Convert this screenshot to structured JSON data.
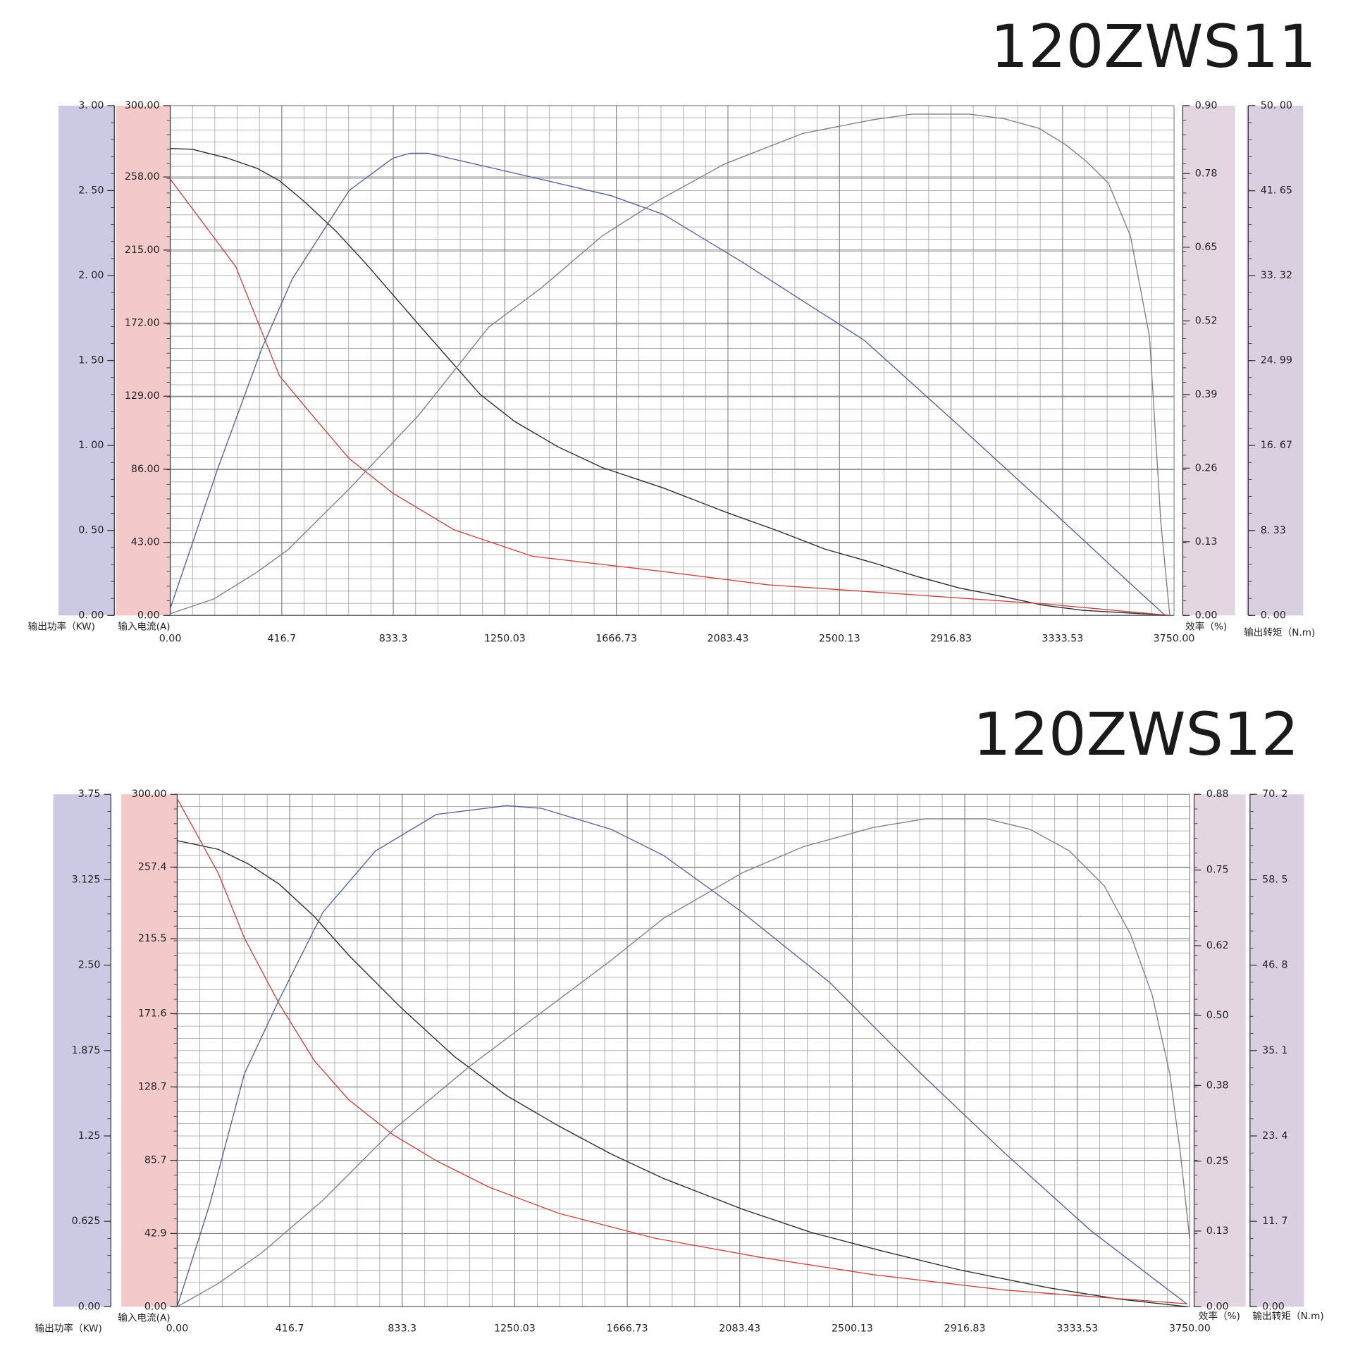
{
  "chart_data": [
    {
      "type": "line",
      "title": "120ZWS11",
      "grid": true,
      "xlim": [
        0,
        3750
      ],
      "xticks": [
        {
          "value": 0,
          "label": "0.00"
        },
        416.7,
        833.3,
        1250.03,
        1666.73,
        2083.43,
        2500.13,
        2916.83,
        3333.53,
        {
          "value": 3750,
          "label": "3750.00"
        }
      ],
      "ylabel": "输出功率（KW)",
      "ylim": [
        0,
        3
      ],
      "yticks": [
        {
          "value": 0,
          "label": "0. 00"
        },
        {
          "value": 0.5,
          "label": "0. 50"
        },
        {
          "value": 1,
          "label": "1. 00"
        },
        {
          "value": 1.5,
          "label": "1. 50"
        },
        {
          "value": 2,
          "label": "2. 00"
        },
        {
          "value": 2.5,
          "label": "2. 50"
        },
        {
          "value": 3,
          "label": "3. 00"
        }
      ],
      "y2label": "输入电流(A)",
      "y2lim": [
        0,
        300
      ],
      "y2ticks": [
        {
          "value": 0,
          "label": "0.00"
        },
        {
          "value": 43,
          "label": "43.00"
        },
        {
          "value": 86,
          "label": "86.00"
        },
        {
          "value": 129,
          "label": "129.00"
        },
        {
          "value": 172,
          "label": "172.00"
        },
        {
          "value": 215,
          "label": "215.00"
        },
        {
          "value": 258,
          "label": "258.00"
        },
        {
          "value": 300,
          "label": "300.00"
        }
      ],
      "y3label": "效率（%)",
      "y3lim": [
        0,
        0.9
      ],
      "y3ticks": [
        {
          "value": 0,
          "label": "0.00"
        },
        0.13,
        0.26,
        0.39,
        0.52,
        0.65,
        0.78,
        {
          "value": 0.9,
          "label": "0.90"
        }
      ],
      "y4label": "输出转矩（N.m)",
      "y4lim": [
        0,
        50
      ],
      "y4ticks": [
        {
          "value": 0,
          "label": "0. 00"
        },
        {
          "value": 8.33,
          "label": "8. 33"
        },
        {
          "value": 16.67,
          "label": "16. 67"
        },
        {
          "value": 24.99,
          "label": "24. 99"
        },
        {
          "value": 33.32,
          "label": "33. 32"
        },
        {
          "value": 41.65,
          "label": "41. 65"
        },
        {
          "value": 50,
          "label": "50. 00"
        }
      ],
      "series": [
        {
          "axis": "y2",
          "color": "#2b2b2b",
          "x": [
            0,
            82,
            212,
            326,
            408,
            505,
            620,
            734,
            929,
            1158,
            1288,
            1451,
            1614,
            1842,
            2071,
            2266,
            2446,
            2625,
            2788,
            2951,
            3114,
            3261,
            3408,
            3734
          ],
          "values": [
            274.8,
            274.3,
            269.2,
            263,
            255.8,
            243,
            226,
            206.5,
            171,
            130,
            114,
            99,
            87,
            75,
            61,
            50,
            39,
            31,
            23,
            16,
            11,
            6,
            3,
            0
          ]
        },
        {
          "axis": "y4",
          "color": "#c8453f",
          "x": [
            0,
            245,
            408,
            538,
            668,
            831,
            1060,
            1353,
            1842,
            2234,
            2625,
            3277,
            3734
          ],
          "values": [
            42.8,
            34.2,
            23.5,
            19.4,
            15.4,
            12.0,
            8.4,
            5.8,
            4.3,
            3.0,
            2.3,
            1.1,
            0
          ]
        },
        {
          "axis": "y",
          "color": "#55619a",
          "x": [
            0,
            179,
            342,
            456,
            668,
            831,
            897,
            962,
            1321,
            1647,
            1842,
            2136,
            2592,
            2951,
            3277,
            3571,
            3717
          ],
          "values": [
            0.04,
            0.87,
            1.57,
            1.98,
            2.5,
            2.69,
            2.72,
            2.72,
            2.59,
            2.47,
            2.36,
            2.08,
            1.62,
            1.11,
            0.64,
            0.21,
            0
          ]
        },
        {
          "axis": "y3",
          "color": "#857a90",
          "x": [
            0,
            163,
            326,
            440,
            668,
            929,
            1190,
            1386,
            1614,
            1810,
            2071,
            2364,
            2625,
            2772,
            2984,
            3114,
            3245,
            3342,
            3424,
            3505,
            3587,
            3658,
            3701,
            3734
          ],
          "values": [
            0.003,
            0.029,
            0.077,
            0.116,
            0.223,
            0.354,
            0.509,
            0.578,
            0.67,
            0.729,
            0.797,
            0.851,
            0.875,
            0.885,
            0.885,
            0.877,
            0.86,
            0.832,
            0.801,
            0.763,
            0.67,
            0.493,
            0.162,
            0
          ]
        }
      ]
    },
    {
      "type": "line",
      "title": "120ZWS12",
      "grid": true,
      "xlim": [
        0,
        3750
      ],
      "xticks": [
        {
          "value": 0,
          "label": "0.00"
        },
        416.7,
        833.3,
        1250.03,
        1666.73,
        2083.43,
        2500.13,
        2916.83,
        3333.53,
        {
          "value": 3750,
          "label": "3750.00"
        }
      ],
      "ylabel": "输出功率（KW)",
      "ylim": [
        0,
        3.75
      ],
      "yticks": [
        {
          "value": 0,
          "label": "0.00"
        },
        0.625,
        1.25,
        1.875,
        {
          "value": 2.5,
          "label": "2.50"
        },
        3.125,
        3.75
      ],
      "y2label": "输入电流(A)",
      "y2lim": [
        0,
        300
      ],
      "y2ticks": [
        {
          "value": 0,
          "label": "0.00"
        },
        42.9,
        85.7,
        128.7,
        171.6,
        215.5,
        257.4,
        {
          "value": 300,
          "label": "300.00"
        }
      ],
      "y3label": "效率（%)",
      "y3lim": [
        0,
        0.88
      ],
      "y3ticks": [
        {
          "value": 0,
          "label": "0.00"
        },
        0.13,
        0.25,
        0.38,
        {
          "value": 0.5,
          "label": "0.50"
        },
        0.62,
        0.75,
        0.88
      ],
      "y4label": "输出转矩（N.m)",
      "y4lim": [
        0,
        70.2
      ],
      "y4ticks": [
        {
          "value": 0,
          "label": "0.00"
        },
        {
          "value": 11.7,
          "label": "11. 7"
        },
        {
          "value": 23.4,
          "label": "23. 4"
        },
        {
          "value": 35.1,
          "label": "35. 1"
        },
        {
          "value": 46.8,
          "label": "46. 8"
        },
        {
          "value": 58.5,
          "label": "58. 5"
        },
        {
          "value": 70.2,
          "label": "70. 2"
        }
      ],
      "series": [
        {
          "axis": "y2",
          "color": "#2b2b2b",
          "x": [
            0,
            152,
            265,
            378,
            508,
            637,
            831,
            1025,
            1219,
            1413,
            1607,
            1801,
            2092,
            2350,
            2609,
            2900,
            3223,
            3482,
            3740
          ],
          "values": [
            272.9,
            267.8,
            259.1,
            247.4,
            228.4,
            205.5,
            174.8,
            146.7,
            123.7,
            105.8,
            89.4,
            75.1,
            57.2,
            43.4,
            32.7,
            21.5,
            11.2,
            4.6,
            0
          ]
        },
        {
          "axis": "y4",
          "color": "#c8453f",
          "x": [
            0,
            152,
            249,
            378,
            508,
            637,
            798,
            960,
            1154,
            1413,
            1768,
            2156,
            2577,
            3061,
            3740
          ],
          "values": [
            69.6,
            59.4,
            50.5,
            41.5,
            33.7,
            28.3,
            23.6,
            20.0,
            16.4,
            12.8,
            9.4,
            6.8,
            4.4,
            2.3,
            0.4
          ]
        },
        {
          "axis": "y",
          "color": "#55619a",
          "x": [
            0,
            120,
            249,
            378,
            540,
            734,
            960,
            1219,
            1348,
            1607,
            1801,
            2092,
            2415,
            2738,
            3061,
            3384,
            3740
          ],
          "values": [
            0,
            0.747,
            1.706,
            2.249,
            2.888,
            3.335,
            3.603,
            3.667,
            3.648,
            3.494,
            3.303,
            2.888,
            2.376,
            1.737,
            1.131,
            0.556,
            0.019
          ]
        },
        {
          "axis": "y3",
          "color": "#857a90",
          "x": [
            0,
            152,
            314,
            540,
            798,
            1089,
            1348,
            1607,
            1801,
            2092,
            2318,
            2577,
            2771,
            2997,
            3158,
            3304,
            3433,
            3530,
            3611,
            3676,
            3715,
            3750
          ],
          "values": [
            0,
            0.04,
            0.093,
            0.183,
            0.303,
            0.415,
            0.505,
            0.595,
            0.667,
            0.745,
            0.79,
            0.823,
            0.838,
            0.838,
            0.82,
            0.783,
            0.723,
            0.64,
            0.535,
            0.4,
            0.265,
            0.115
          ]
        }
      ]
    }
  ]
}
